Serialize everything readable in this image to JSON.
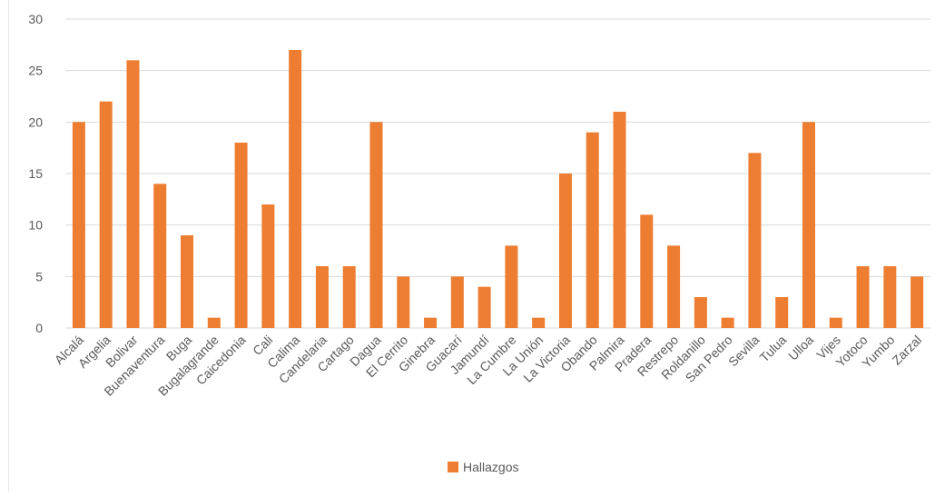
{
  "chart_data": {
    "type": "bar",
    "title": "",
    "xlabel": "",
    "ylabel": "",
    "ylim": [
      0,
      30
    ],
    "yticks": [
      0,
      5,
      10,
      15,
      20,
      25,
      30
    ],
    "grid": true,
    "legend_position": "bottom",
    "colors": {
      "bar": "#ED7D31",
      "grid": "#D9D9D9",
      "text": "#595959"
    },
    "categories": [
      "Alcalá",
      "Argelia",
      "Bolivar",
      "Buenaventura",
      "Buga",
      "Bugalagrande",
      "Caicedonia",
      "Cali",
      "Calima",
      "Candelaria",
      "Cartago",
      "Dagua",
      "El Cerrito",
      "Ginebra",
      "Guacarí",
      "Jamundí",
      "La Cumbre",
      "La Unión",
      "La Victoria",
      "Obando",
      "Palmira",
      "Pradera",
      "Restrepo",
      "Roldanillo",
      "San Pedro",
      "Sevilla",
      "Tulua",
      "Ulloa",
      "Vijes",
      "Yotoco",
      "Yumbo",
      "Zarzal"
    ],
    "series": [
      {
        "name": "Hallazgos",
        "values": [
          20,
          22,
          26,
          14,
          9,
          1,
          18,
          12,
          27,
          6,
          6,
          20,
          5,
          1,
          5,
          4,
          8,
          1,
          15,
          19,
          21,
          11,
          8,
          3,
          1,
          17,
          3,
          20,
          1,
          6,
          6,
          5
        ]
      }
    ]
  }
}
